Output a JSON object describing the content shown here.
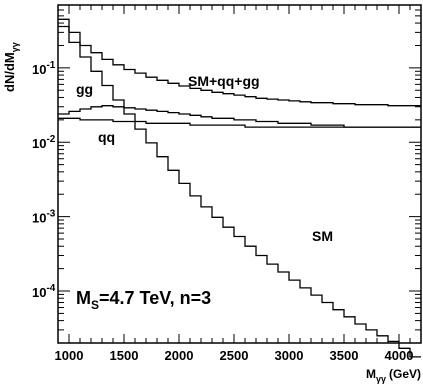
{
  "chart_data": {
    "type": "line",
    "step": true,
    "title": "",
    "xlabel": "M_γγ (GeV)",
    "xlabel_main": "M",
    "xlabel_sub": "γγ",
    "xlabel_unit": "(GeV)",
    "ylabel": "dN/dM_γγ",
    "ylabel_main": "dN/dM",
    "ylabel_sub": "γγ",
    "xlim": [
      900,
      4200
    ],
    "ylim": [
      2e-05,
      0.7
    ],
    "yscale": "log",
    "x_ticks": [
      1000,
      1500,
      2000,
      2500,
      3000,
      3500,
      4000
    ],
    "x_tick_labels": [
      "1000",
      "1500",
      "2000",
      "2500",
      "3000",
      "3500",
      "4000"
    ],
    "y_ticks": [
      0.0001,
      0.001,
      0.01,
      0.1
    ],
    "y_tick_exponents": [
      "-4",
      "-3",
      "-2",
      "-1"
    ],
    "y_tick_base": "10",
    "bin_edges": [
      900,
      1000,
      1100,
      1200,
      1300,
      1400,
      1500,
      1600,
      1700,
      1800,
      1900,
      2000,
      2100,
      2200,
      2300,
      2400,
      2500,
      2600,
      2700,
      2800,
      2900,
      3000,
      3100,
      3200,
      3300,
      3400,
      3500,
      3600,
      3700,
      3800,
      3900,
      4000,
      4100,
      4200
    ],
    "series": [
      {
        "name": "SM",
        "values": [
          0.36,
          0.22,
          0.14,
          0.09,
          0.058,
          0.037,
          0.024,
          0.015,
          0.0098,
          0.0064,
          0.0042,
          0.0028,
          0.0019,
          0.00135,
          0.00098,
          0.00072,
          0.00054,
          0.0004,
          0.0003,
          0.00023,
          0.00018,
          0.00014,
          0.00011,
          8.8e-05,
          7e-05,
          5.6e-05,
          4.5e-05,
          3.6e-05,
          3e-05,
          2.5e-05,
          2.1e-05,
          1.7e-05,
          1.3e-05
        ]
      },
      {
        "name": "SM+qq+gg",
        "values": [
          0.45,
          0.3,
          0.2,
          0.16,
          0.13,
          0.11,
          0.095,
          0.085,
          0.075,
          0.068,
          0.062,
          0.057,
          0.053,
          0.05,
          0.047,
          0.045,
          0.043,
          0.041,
          0.039,
          0.038,
          0.037,
          0.036,
          0.035,
          0.034,
          0.034,
          0.033,
          0.033,
          0.032,
          0.032,
          0.032,
          0.031,
          0.031,
          0.031
        ]
      },
      {
        "name": "gg",
        "values": [
          0.024,
          0.026,
          0.028,
          0.03,
          0.031,
          0.03,
          0.029,
          0.028,
          0.027,
          0.026,
          0.025,
          0.024,
          0.023,
          0.022,
          0.021,
          0.021,
          0.02,
          0.02,
          0.019,
          0.019,
          0.018,
          0.018,
          0.018,
          0.017,
          0.017,
          0.017,
          0.016,
          0.016,
          0.016,
          0.016,
          0.016,
          0.016,
          0.016
        ]
      },
      {
        "name": "qq",
        "values": [
          0.021,
          0.021,
          0.02,
          0.02,
          0.02,
          0.019,
          0.019,
          0.019,
          0.018,
          0.018,
          0.018,
          0.018,
          0.017,
          0.017,
          0.017,
          0.017,
          0.017,
          0.016,
          0.016,
          0.016,
          0.016,
          0.016,
          0.016,
          0.016,
          0.016,
          0.016,
          0.016,
          0.016,
          0.016,
          0.016,
          0.016,
          0.016,
          0.016
        ]
      }
    ],
    "annotations": {
      "sm": "SM",
      "total": "SM+qq+gg",
      "gg": "gg",
      "qq": "qq",
      "params_main": "M",
      "params_sub": "S",
      "params_rest": "=4.7 TeV, n=3"
    }
  }
}
